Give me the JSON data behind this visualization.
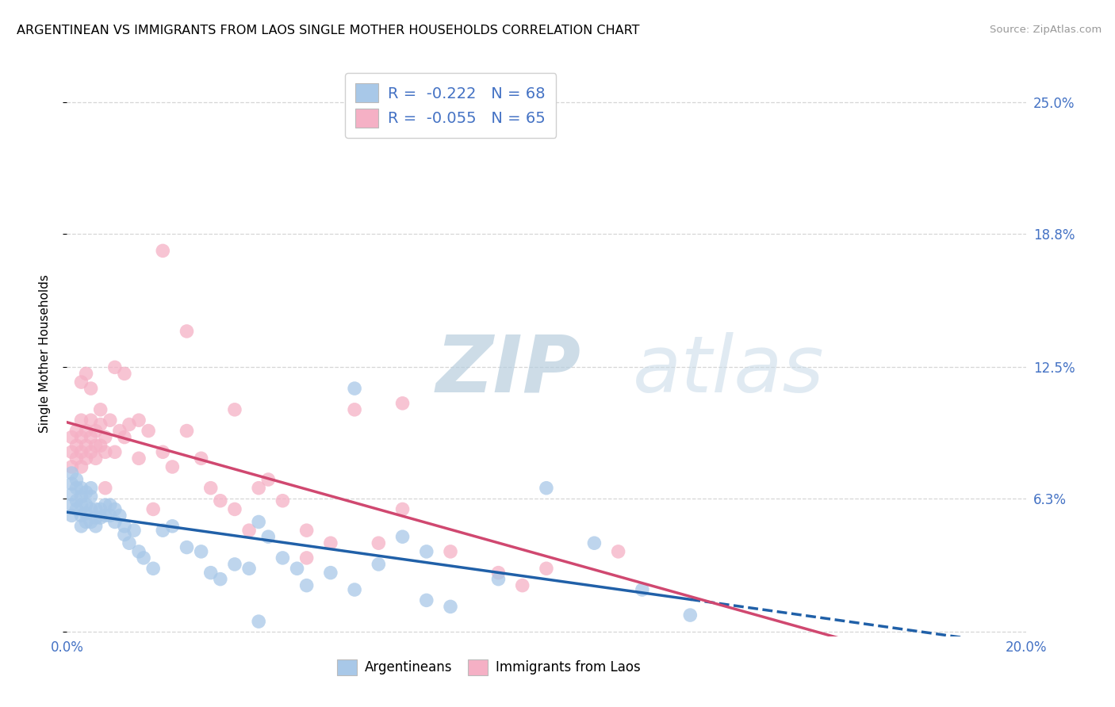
{
  "title": "ARGENTINEAN VS IMMIGRANTS FROM LAOS SINGLE MOTHER HOUSEHOLDS CORRELATION CHART",
  "source": "Source: ZipAtlas.com",
  "ylabel": "Single Mother Households",
  "x_range": [
    0.0,
    0.2
  ],
  "y_range": [
    -0.002,
    0.265
  ],
  "y_ticks": [
    0.0,
    0.063,
    0.125,
    0.188,
    0.25
  ],
  "y_tick_labels": [
    "",
    "6.3%",
    "12.5%",
    "18.8%",
    "25.0%"
  ],
  "x_ticks": [
    0.0,
    0.05,
    0.1,
    0.15,
    0.2
  ],
  "x_tick_labels": [
    "0.0%",
    "",
    "",
    "",
    "20.0%"
  ],
  "blue_R": -0.222,
  "blue_N": 68,
  "pink_R": -0.055,
  "pink_N": 65,
  "blue_scatter_color": "#a8c8e8",
  "pink_scatter_color": "#f5b0c5",
  "blue_line_color": "#2060a8",
  "pink_line_color": "#d04870",
  "watermark_zip": "ZIP",
  "watermark_atlas": "atlas",
  "legend_R_color": "#4472c4",
  "tick_color": "#4472c4",
  "background": "#ffffff",
  "grid_color": "#cccccc",
  "blue_x": [
    0.001,
    0.001,
    0.001,
    0.001,
    0.001,
    0.002,
    0.002,
    0.002,
    0.002,
    0.003,
    0.003,
    0.003,
    0.003,
    0.003,
    0.004,
    0.004,
    0.004,
    0.004,
    0.005,
    0.005,
    0.005,
    0.005,
    0.006,
    0.006,
    0.006,
    0.007,
    0.007,
    0.008,
    0.008,
    0.009,
    0.009,
    0.01,
    0.01,
    0.011,
    0.012,
    0.012,
    0.013,
    0.014,
    0.015,
    0.016,
    0.018,
    0.02,
    0.022,
    0.025,
    0.028,
    0.03,
    0.032,
    0.035,
    0.038,
    0.04,
    0.042,
    0.045,
    0.048,
    0.05,
    0.055,
    0.06,
    0.065,
    0.07,
    0.075,
    0.08,
    0.09,
    0.1,
    0.11,
    0.12,
    0.13,
    0.04,
    0.075,
    0.06
  ],
  "blue_y": [
    0.075,
    0.07,
    0.065,
    0.06,
    0.055,
    0.072,
    0.068,
    0.062,
    0.058,
    0.068,
    0.064,
    0.06,
    0.055,
    0.05,
    0.066,
    0.06,
    0.056,
    0.052,
    0.068,
    0.064,
    0.058,
    0.052,
    0.058,
    0.054,
    0.05,
    0.058,
    0.054,
    0.06,
    0.055,
    0.06,
    0.055,
    0.058,
    0.052,
    0.055,
    0.05,
    0.046,
    0.042,
    0.048,
    0.038,
    0.035,
    0.03,
    0.048,
    0.05,
    0.04,
    0.038,
    0.028,
    0.025,
    0.032,
    0.03,
    0.052,
    0.045,
    0.035,
    0.03,
    0.022,
    0.028,
    0.02,
    0.032,
    0.045,
    0.015,
    0.012,
    0.025,
    0.068,
    0.042,
    0.02,
    0.008,
    0.005,
    0.038,
    0.115
  ],
  "pink_x": [
    0.001,
    0.001,
    0.001,
    0.002,
    0.002,
    0.002,
    0.003,
    0.003,
    0.003,
    0.003,
    0.004,
    0.004,
    0.004,
    0.005,
    0.005,
    0.005,
    0.006,
    0.006,
    0.007,
    0.007,
    0.008,
    0.008,
    0.009,
    0.01,
    0.011,
    0.012,
    0.013,
    0.015,
    0.017,
    0.02,
    0.022,
    0.025,
    0.028,
    0.03,
    0.032,
    0.035,
    0.038,
    0.04,
    0.042,
    0.045,
    0.05,
    0.055,
    0.06,
    0.065,
    0.07,
    0.08,
    0.09,
    0.1,
    0.115,
    0.003,
    0.004,
    0.005,
    0.006,
    0.007,
    0.008,
    0.01,
    0.012,
    0.015,
    0.018,
    0.02,
    0.025,
    0.035,
    0.05,
    0.07,
    0.095
  ],
  "pink_y": [
    0.085,
    0.092,
    0.078,
    0.088,
    0.082,
    0.095,
    0.1,
    0.092,
    0.085,
    0.078,
    0.095,
    0.088,
    0.082,
    0.1,
    0.092,
    0.085,
    0.095,
    0.088,
    0.105,
    0.098,
    0.092,
    0.085,
    0.1,
    0.085,
    0.095,
    0.092,
    0.098,
    0.1,
    0.095,
    0.085,
    0.078,
    0.095,
    0.082,
    0.068,
    0.062,
    0.058,
    0.048,
    0.068,
    0.072,
    0.062,
    0.048,
    0.042,
    0.105,
    0.042,
    0.108,
    0.038,
    0.028,
    0.03,
    0.038,
    0.118,
    0.122,
    0.115,
    0.082,
    0.088,
    0.068,
    0.125,
    0.122,
    0.082,
    0.058,
    0.18,
    0.142,
    0.105,
    0.035,
    0.058,
    0.022
  ]
}
